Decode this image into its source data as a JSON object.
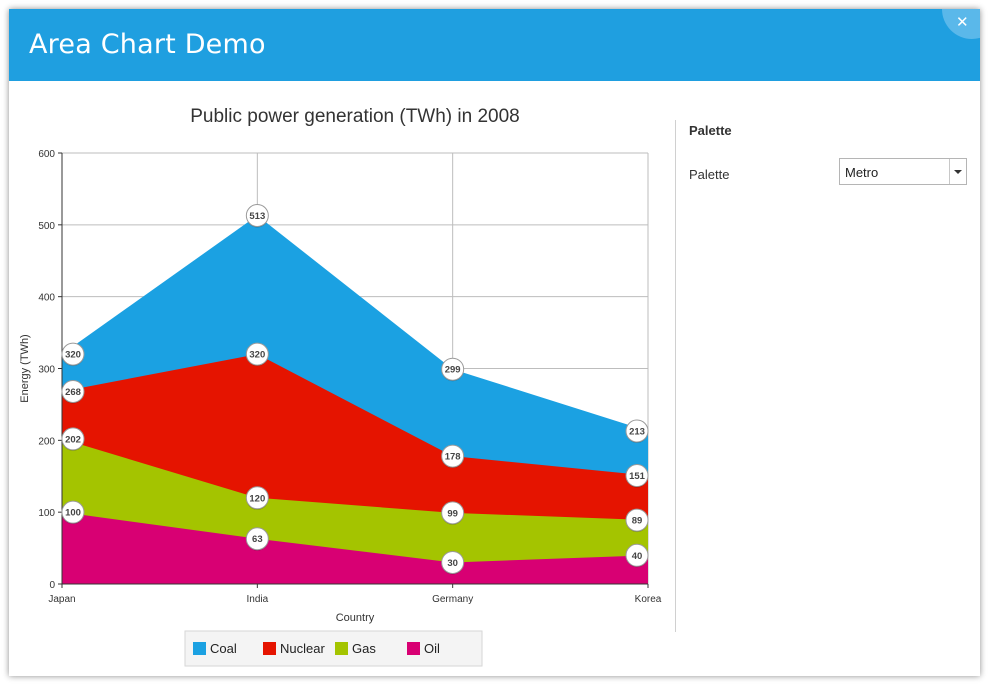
{
  "window": {
    "title": "Area Chart Demo",
    "close_icon": "close-icon"
  },
  "panel": {
    "heading": "Palette",
    "palette_label": "Palette",
    "palette_value": "Metro"
  },
  "chart_data": {
    "type": "area",
    "stacked": true,
    "title": "Public power generation (TWh) in 2008",
    "xlabel": "Country",
    "ylabel": "Energy (TWh)",
    "categories": [
      "Japan",
      "India",
      "Germany",
      "Korea"
    ],
    "ylim": [
      0,
      600
    ],
    "yticks": [
      0,
      100,
      200,
      300,
      400,
      500,
      600
    ],
    "grid": true,
    "legend_position": "bottom",
    "series": [
      {
        "name": "Coal",
        "color": "#1ba1e2",
        "cumulative": [
          320,
          513,
          299,
          213
        ]
      },
      {
        "name": "Nuclear",
        "color": "#e51400",
        "cumulative": [
          268,
          320,
          178,
          151
        ]
      },
      {
        "name": "Gas",
        "color": "#a4c400",
        "cumulative": [
          202,
          120,
          99,
          89
        ]
      },
      {
        "name": "Oil",
        "color": "#d80073",
        "cumulative": [
          100,
          63,
          30,
          40
        ]
      }
    ],
    "legend_draw_order": [
      "Coal",
      "Nuclear",
      "Gas",
      "Oil"
    ]
  }
}
